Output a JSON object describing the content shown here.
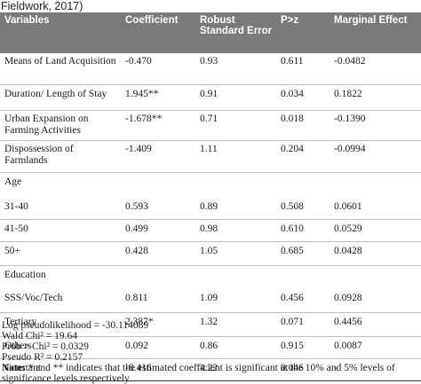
{
  "source_fragment": "Fieldwork, 2017)",
  "headers": [
    "Variables",
    "Coefficient",
    "Robust Standard Error",
    "P>z",
    "Marginal Effect"
  ],
  "rows": [
    {
      "variable": "Means of Land Acquisition",
      "coefficient": "-0.470",
      "robust_se": "0.93",
      "p": "0.611",
      "marginal": "-0.0482"
    },
    {
      "variable": "Duration/ Length of Stay",
      "coefficient": "1.945**",
      "robust_se": "0.91",
      "p": "0.034",
      "marginal": "0.1822"
    },
    {
      "variable": "Urban Expansion on Farming Activities",
      "coefficient": "-1.678**",
      "robust_se": "0.71",
      "p": "0.018",
      "marginal": "-0.1390"
    },
    {
      "variable": "Dispossession of Farmlands",
      "coefficient": "-1.409",
      "robust_se": "1.11",
      "p": "0.204",
      "marginal": "-0.0994"
    },
    {
      "variable": "Age",
      "coefficient": "",
      "robust_se": "",
      "p": "",
      "marginal": ""
    },
    {
      "variable": "31-40",
      "coefficient": "0.593",
      "robust_se": "0.89",
      "p": "0.508",
      "marginal": "0.0601"
    },
    {
      "variable": "41-50",
      "coefficient": "0.499",
      "robust_se": "0.98",
      "p": "0.610",
      "marginal": "0.0529"
    },
    {
      "variable": "50+",
      "coefficient": "0.428",
      "robust_se": "1.05",
      "p": "0.685",
      "marginal": "0.0428"
    },
    {
      "variable": "Education",
      "coefficient": "",
      "robust_se": "",
      "p": "",
      "marginal": ""
    },
    {
      "variable": "SSS/Voc/Tech",
      "coefficient": "0.811",
      "robust_se": "1.09",
      "p": "0.456",
      "marginal": "0.0928"
    },
    {
      "variable": "Tertiary",
      "coefficient": "2.387*",
      "robust_se": "1.32",
      "p": "0.071",
      "marginal": "0.4456"
    },
    {
      "variable": "Others",
      "coefficient": "0.092",
      "robust_se": "0.86",
      "p": "0.915",
      "marginal": "0.0087"
    },
    {
      "variable": "Constant",
      "coefficient": "-8.416",
      "robust_se": "4.22",
      "p": "0.046",
      "marginal": "-"
    }
  ],
  "stats": {
    "log_pseudolikelihood": "Log pseudolikelihood = -30.114089",
    "wald_chi2": "Wald Chi² = 19.64",
    "prob_chi2": "Prob > Chi² = 0.0329",
    "pseudo_r2": "Pseudo R² = 0.2157"
  },
  "note": {
    "label": "Note:",
    "text": " * and ** indicates that the estimated coefficient is significant at the 10% and 5% levels of significance levels respectively"
  }
}
